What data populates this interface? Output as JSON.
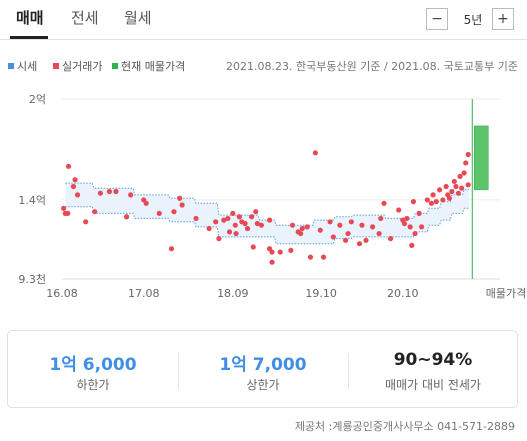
{
  "tabs": [
    {
      "label": "매매",
      "active": true
    },
    {
      "label": "전세",
      "active": false
    },
    {
      "label": "월세",
      "active": false
    }
  ],
  "period": {
    "minus_label": "−",
    "value": "5년",
    "plus_label": "+"
  },
  "legend": [
    {
      "label": "시세",
      "color": "#4a90e2"
    },
    {
      "label": "실거래가",
      "color": "#e84a55"
    },
    {
      "label": "현재 매물가격",
      "color": "#2fb34a"
    }
  ],
  "source_text": "2021.08.23. 한국부동산원 기준 / 2021.08. 국토교통부 기준",
  "chart_data": {
    "type": "scatter",
    "y_unit": "만원",
    "ylim": [
      9300,
      20000
    ],
    "y_ticks": [
      {
        "value": 20000,
        "label": "2억"
      },
      {
        "value": 14000,
        "label": "1.4억"
      },
      {
        "value": 9300,
        "label": "9.3천"
      }
    ],
    "xlim": [
      2016.58,
      2021.67
    ],
    "x_ticks": [
      {
        "value": 2016.58,
        "label": "16.08"
      },
      {
        "value": 2017.58,
        "label": "17.08"
      },
      {
        "value": 2018.67,
        "label": "18.09"
      },
      {
        "value": 2019.75,
        "label": "19.10"
      },
      {
        "value": 2020.75,
        "label": "20.10"
      }
    ],
    "current_listing_label": "매물가격",
    "grid": true,
    "market_price_band": [
      {
        "x": 2016.62,
        "lower": 13600,
        "upper": 15000
      },
      {
        "x": 2016.95,
        "lower": 13600,
        "upper": 15000
      },
      {
        "x": 2016.97,
        "lower": 13200,
        "upper": 14700
      },
      {
        "x": 2017.45,
        "lower": 13200,
        "upper": 14700
      },
      {
        "x": 2017.47,
        "lower": 12900,
        "upper": 14300
      },
      {
        "x": 2017.88,
        "lower": 12900,
        "upper": 14300
      },
      {
        "x": 2017.9,
        "lower": 12700,
        "upper": 14100
      },
      {
        "x": 2018.2,
        "lower": 12700,
        "upper": 14100
      },
      {
        "x": 2018.22,
        "lower": 12400,
        "upper": 13800
      },
      {
        "x": 2018.48,
        "lower": 12400,
        "upper": 13800
      },
      {
        "x": 2018.5,
        "lower": 11800,
        "upper": 13100
      },
      {
        "x": 2018.98,
        "lower": 11800,
        "upper": 13100
      },
      {
        "x": 2019.0,
        "lower": 11800,
        "upper": 12800
      },
      {
        "x": 2019.18,
        "lower": 11800,
        "upper": 12800
      },
      {
        "x": 2019.2,
        "lower": 11400,
        "upper": 12500
      },
      {
        "x": 2019.65,
        "lower": 11400,
        "upper": 12500
      },
      {
        "x": 2019.67,
        "lower": 11400,
        "upper": 12800
      },
      {
        "x": 2019.9,
        "lower": 11400,
        "upper": 12800
      },
      {
        "x": 2019.92,
        "lower": 11700,
        "upper": 13000
      },
      {
        "x": 2020.12,
        "lower": 11700,
        "upper": 13000
      },
      {
        "x": 2020.14,
        "lower": 11800,
        "upper": 13100
      },
      {
        "x": 2020.52,
        "lower": 11800,
        "upper": 13100
      },
      {
        "x": 2020.54,
        "lower": 11800,
        "upper": 12900
      },
      {
        "x": 2020.88,
        "lower": 11800,
        "upper": 12900
      },
      {
        "x": 2020.9,
        "lower": 12100,
        "upper": 13200
      },
      {
        "x": 2021.05,
        "lower": 12100,
        "upper": 13200
      },
      {
        "x": 2021.07,
        "lower": 12500,
        "upper": 13500
      },
      {
        "x": 2021.2,
        "lower": 12500,
        "upper": 13500
      },
      {
        "x": 2021.22,
        "lower": 12800,
        "upper": 13900
      },
      {
        "x": 2021.33,
        "lower": 12800,
        "upper": 13900
      },
      {
        "x": 2021.35,
        "lower": 13200,
        "upper": 14300
      },
      {
        "x": 2021.48,
        "lower": 13200,
        "upper": 14300
      },
      {
        "x": 2021.5,
        "lower": 13500,
        "upper": 14600
      },
      {
        "x": 2021.56,
        "lower": 13500,
        "upper": 14600
      }
    ],
    "transactions": [
      {
        "x": 2016.6,
        "y": 13500
      },
      {
        "x": 2016.62,
        "y": 13200
      },
      {
        "x": 2016.65,
        "y": 13200
      },
      {
        "x": 2016.66,
        "y": 16000
      },
      {
        "x": 2016.72,
        "y": 14800
      },
      {
        "x": 2016.74,
        "y": 15200
      },
      {
        "x": 2016.77,
        "y": 14300
      },
      {
        "x": 2016.87,
        "y": 12700
      },
      {
        "x": 2016.98,
        "y": 13300
      },
      {
        "x": 2017.05,
        "y": 14400
      },
      {
        "x": 2017.16,
        "y": 14500
      },
      {
        "x": 2017.24,
        "y": 14500
      },
      {
        "x": 2017.37,
        "y": 13000
      },
      {
        "x": 2017.42,
        "y": 14300
      },
      {
        "x": 2017.58,
        "y": 14000
      },
      {
        "x": 2017.61,
        "y": 13800
      },
      {
        "x": 2017.77,
        "y": 13200
      },
      {
        "x": 2017.92,
        "y": 11100
      },
      {
        "x": 2017.95,
        "y": 13300
      },
      {
        "x": 2018.02,
        "y": 14100
      },
      {
        "x": 2018.05,
        "y": 13700
      },
      {
        "x": 2018.22,
        "y": 12900
      },
      {
        "x": 2018.38,
        "y": 12300
      },
      {
        "x": 2018.46,
        "y": 12700
      },
      {
        "x": 2018.5,
        "y": 11700
      },
      {
        "x": 2018.56,
        "y": 12800
      },
      {
        "x": 2018.61,
        "y": 12900
      },
      {
        "x": 2018.63,
        "y": 12100
      },
      {
        "x": 2018.67,
        "y": 13200
      },
      {
        "x": 2018.7,
        "y": 12500
      },
      {
        "x": 2018.71,
        "y": 12000
      },
      {
        "x": 2018.75,
        "y": 13000
      },
      {
        "x": 2018.78,
        "y": 12700
      },
      {
        "x": 2018.82,
        "y": 12600
      },
      {
        "x": 2018.85,
        "y": 12300
      },
      {
        "x": 2018.9,
        "y": 13000
      },
      {
        "x": 2018.92,
        "y": 11200
      },
      {
        "x": 2018.95,
        "y": 13300
      },
      {
        "x": 2018.97,
        "y": 12600
      },
      {
        "x": 2019.02,
        "y": 12500
      },
      {
        "x": 2019.12,
        "y": 12800
      },
      {
        "x": 2019.12,
        "y": 11100
      },
      {
        "x": 2019.15,
        "y": 10900
      },
      {
        "x": 2019.15,
        "y": 10300
      },
      {
        "x": 2019.25,
        "y": 10900
      },
      {
        "x": 2019.38,
        "y": 11000
      },
      {
        "x": 2019.4,
        "y": 12500
      },
      {
        "x": 2019.47,
        "y": 12100
      },
      {
        "x": 2019.5,
        "y": 12000
      },
      {
        "x": 2019.52,
        "y": 12300
      },
      {
        "x": 2019.58,
        "y": 12400
      },
      {
        "x": 2019.62,
        "y": 10600
      },
      {
        "x": 2019.68,
        "y": 16800
      },
      {
        "x": 2019.74,
        "y": 12200
      },
      {
        "x": 2019.78,
        "y": 10600
      },
      {
        "x": 2019.86,
        "y": 12700
      },
      {
        "x": 2019.9,
        "y": 11800
      },
      {
        "x": 2019.98,
        "y": 12500
      },
      {
        "x": 2020.05,
        "y": 11600
      },
      {
        "x": 2020.08,
        "y": 12000
      },
      {
        "x": 2020.12,
        "y": 12700
      },
      {
        "x": 2020.22,
        "y": 11400
      },
      {
        "x": 2020.25,
        "y": 12500
      },
      {
        "x": 2020.3,
        "y": 11600
      },
      {
        "x": 2020.38,
        "y": 12400
      },
      {
        "x": 2020.46,
        "y": 12000
      },
      {
        "x": 2020.48,
        "y": 12900
      },
      {
        "x": 2020.52,
        "y": 13800
      },
      {
        "x": 2020.6,
        "y": 11700
      },
      {
        "x": 2020.7,
        "y": 13400
      },
      {
        "x": 2020.75,
        "y": 12800
      },
      {
        "x": 2020.77,
        "y": 12600
      },
      {
        "x": 2020.8,
        "y": 12900
      },
      {
        "x": 2020.84,
        "y": 12400
      },
      {
        "x": 2020.86,
        "y": 11300
      },
      {
        "x": 2020.88,
        "y": 13900
      },
      {
        "x": 2020.9,
        "y": 12000
      },
      {
        "x": 2020.95,
        "y": 13200
      },
      {
        "x": 2020.98,
        "y": 12400
      },
      {
        "x": 2021.05,
        "y": 14000
      },
      {
        "x": 2021.1,
        "y": 13800
      },
      {
        "x": 2021.12,
        "y": 14300
      },
      {
        "x": 2021.16,
        "y": 13900
      },
      {
        "x": 2021.2,
        "y": 14600
      },
      {
        "x": 2021.24,
        "y": 14000
      },
      {
        "x": 2021.28,
        "y": 14800
      },
      {
        "x": 2021.3,
        "y": 14300
      },
      {
        "x": 2021.32,
        "y": 14100
      },
      {
        "x": 2021.35,
        "y": 14500
      },
      {
        "x": 2021.38,
        "y": 15100
      },
      {
        "x": 2021.4,
        "y": 14800
      },
      {
        "x": 2021.43,
        "y": 14400
      },
      {
        "x": 2021.45,
        "y": 15400
      },
      {
        "x": 2021.47,
        "y": 14700
      },
      {
        "x": 2021.5,
        "y": 15600
      },
      {
        "x": 2021.52,
        "y": 16200
      },
      {
        "x": 2021.55,
        "y": 16700
      },
      {
        "x": 2021.55,
        "y": 14900
      }
    ],
    "current_listing_range": {
      "lower": 14600,
      "upper": 18400
    },
    "current_listing_marker_x": 2021.6
  },
  "stats": [
    {
      "value": "1억 6,000",
      "label": "하한가",
      "color": "#3f8fe6"
    },
    {
      "value": "1억 7,000",
      "label": "상한가",
      "color": "#3f8fe6"
    },
    {
      "value": "90~94%",
      "label": "매매가 대비 전세가",
      "color": "#222222"
    }
  ],
  "provider": "제공처 :계룡공인중개사사무소 041-571-2889"
}
